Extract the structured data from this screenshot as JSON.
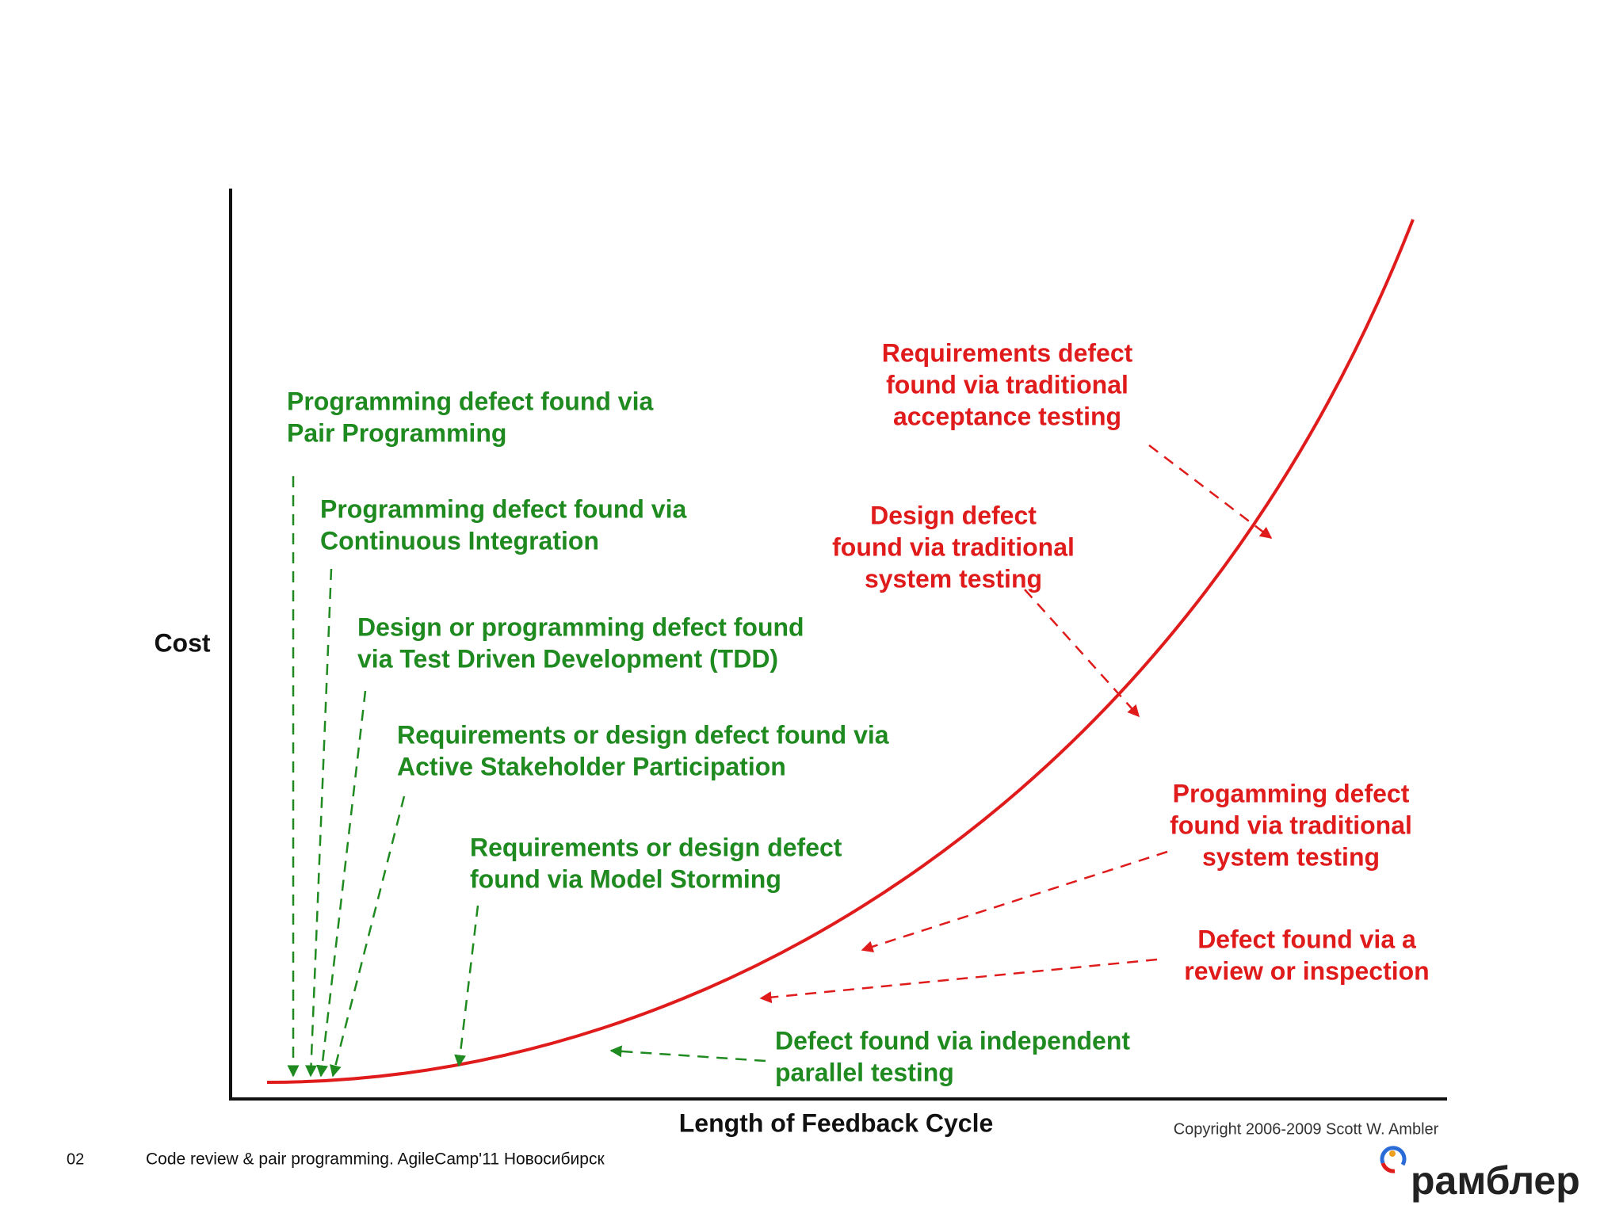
{
  "axes": {
    "y_label": "Cost",
    "x_label": "Length of Feedback Cycle"
  },
  "green_annotations": [
    {
      "lines": [
        "Programming defect found via",
        "Pair Programming"
      ]
    },
    {
      "lines": [
        "Programming defect found via",
        "Continuous Integration"
      ]
    },
    {
      "lines": [
        "Design or programming defect found",
        "via Test Driven Development (TDD)"
      ]
    },
    {
      "lines": [
        "Requirements or design defect found via",
        "Active Stakeholder Participation"
      ]
    },
    {
      "lines": [
        "Requirements or design defect",
        "found via Model Storming"
      ]
    },
    {
      "lines": [
        "Defect found via independent",
        "parallel testing"
      ]
    }
  ],
  "red_annotations": [
    {
      "lines": [
        "Requirements defect",
        "found via traditional",
        "acceptance testing"
      ]
    },
    {
      "lines": [
        "Design defect",
        "found via traditional",
        "system testing"
      ]
    },
    {
      "lines": [
        "Progamming defect",
        "found via traditional",
        "system testing"
      ]
    },
    {
      "lines": [
        "Defect found via a",
        "review or inspection"
      ]
    }
  ],
  "copyright": "Copyright 2006-2009 Scott W. Ambler",
  "footer": {
    "slide_number": "02",
    "text": "Code review & pair programming. AgileCamp'11 Новосибирск"
  },
  "logo": "рамблер"
}
